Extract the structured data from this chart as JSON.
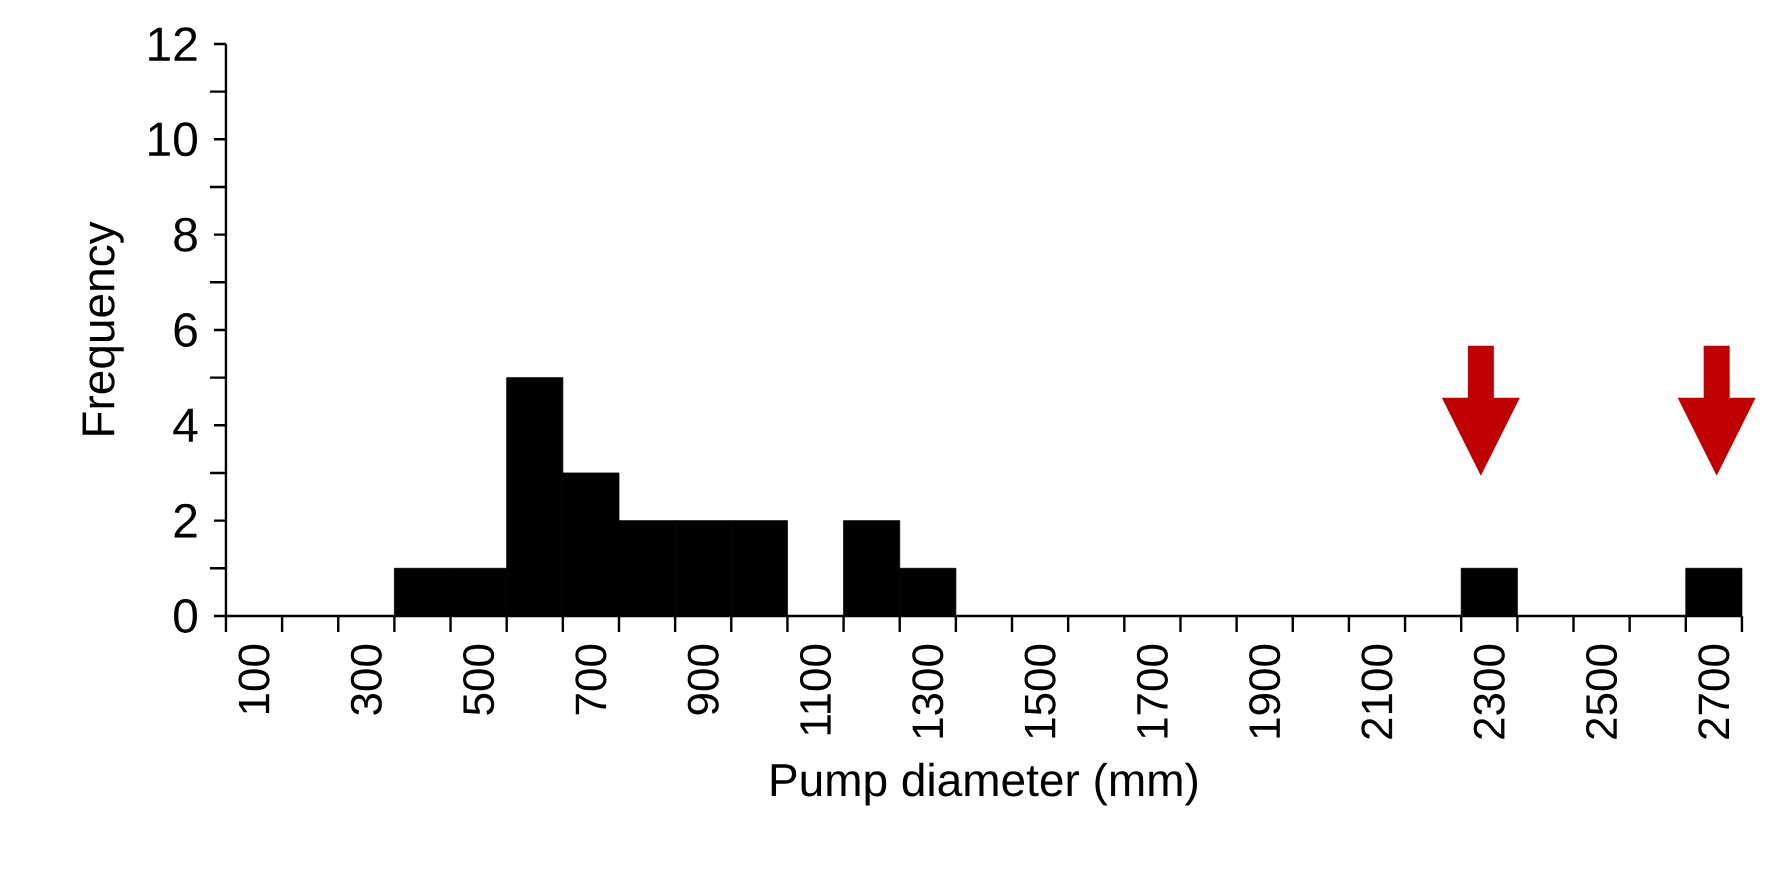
{
  "chart_data": {
    "type": "bar",
    "xlabel": "Pump diameter (mm)",
    "ylabel": "Frequency",
    "categories": [
      "100",
      null,
      "300",
      null,
      "500",
      null,
      "700",
      null,
      "900",
      null,
      "1100",
      null,
      "1300",
      null,
      "1500",
      null,
      "1700",
      null,
      "1900",
      null,
      "2100",
      null,
      "2300",
      null,
      "2500",
      null,
      "2700"
    ],
    "values": [
      0,
      0,
      0,
      1,
      1,
      5,
      3,
      2,
      2,
      2,
      0,
      2,
      1,
      0,
      0,
      0,
      0,
      0,
      0,
      0,
      0,
      0,
      1,
      0,
      0,
      0,
      1
    ],
    "color": "#000000",
    "ylim": [
      0,
      12
    ],
    "yticks": [
      0,
      2,
      4,
      6,
      8,
      10,
      12
    ]
  }
}
